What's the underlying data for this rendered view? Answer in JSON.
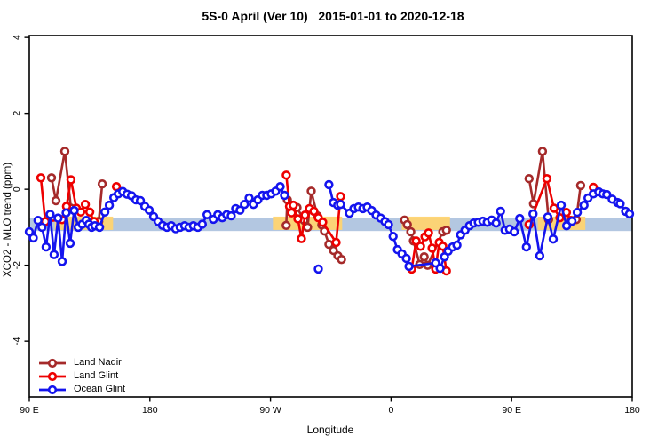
{
  "chart_data": {
    "type": "line",
    "title": "5S-0 April (Ver 10)   2015-01-01 to 2020-12-18",
    "xlabel": "Longitude",
    "ylabel": "XCO2 - MLO trend (ppm)",
    "xlim": [
      90,
      540
    ],
    "ylim": [
      -5.47,
      4.05
    ],
    "grid": false,
    "legend_position": "bottom-left",
    "x_axis_note": "x axis is longitude wrapping eastward: 90E to 180 to 90W to 0 to 90E to 180",
    "x_ticks": [
      {
        "value": 90,
        "label": "90 E"
      },
      {
        "value": 180,
        "label": "180"
      },
      {
        "value": 270,
        "label": "90 W"
      },
      {
        "value": 360,
        "label": "0"
      },
      {
        "value": 450,
        "label": "90 E"
      },
      {
        "value": 540,
        "label": "180"
      }
    ],
    "y_ticks": [
      {
        "value": -4,
        "label": "-4"
      },
      {
        "value": -2,
        "label": "-2"
      },
      {
        "value": 0,
        "label": "0"
      },
      {
        "value": 2,
        "label": "2"
      },
      {
        "value": 4,
        "label": "4"
      }
    ],
    "bands": [
      {
        "name": "blue-band",
        "color": "#AFC4DF",
        "opacity": 0.95,
        "y_range": [
          -1.1,
          -0.75
        ],
        "x_segments": [
          [
            90,
            540
          ]
        ]
      },
      {
        "name": "yellow-band",
        "color": "#FFD470",
        "opacity": 0.95,
        "y_range": [
          -1.07,
          -0.72
        ],
        "x_segments": [
          [
            109,
            152.5
          ],
          [
            271.8,
            323.5
          ],
          [
            368,
            404
          ],
          [
            469.5,
            505
          ]
        ]
      }
    ],
    "series": [
      {
        "name": "Land Nadir",
        "color": "#A52A2A",
        "marker": "open-circle",
        "segments": [
          [
            [
              106.6,
              0.3
            ],
            [
              109.9,
              -0.3
            ],
            [
              116.5,
              1.0
            ],
            [
              121.1,
              -0.5
            ]
          ],
          [
            [
              141.8,
              -0.85
            ],
            [
              144.4,
              0.14
            ]
          ],
          [
            [
              281.7,
              -0.95
            ],
            [
              282.6,
              -0.28
            ],
            [
              285.8,
              -0.42
            ],
            [
              289.8,
              -0.48
            ],
            [
              295.1,
              -0.82
            ],
            [
              297.7,
              -1.0
            ],
            [
              300.4,
              -0.05
            ],
            [
              305.0,
              -0.7
            ],
            [
              308.3,
              -0.94
            ],
            [
              310.3,
              -1.1
            ],
            [
              313.6,
              -1.45
            ],
            [
              317.0,
              -1.61
            ],
            [
              320.3,
              -1.75
            ],
            [
              323.0,
              -1.85
            ]
          ],
          [
            [
              370.1,
              -0.81
            ],
            [
              372.1,
              -0.93
            ],
            [
              374.7,
              -1.12
            ],
            [
              376.7,
              -1.36
            ],
            [
              381.4,
              -1.98
            ],
            [
              384.7,
              -1.78
            ],
            [
              387.3,
              -2.0
            ],
            [
              398.6,
              -1.12
            ],
            [
              401.3,
              -1.08
            ]
          ],
          [
            [
              463.0,
              0.28
            ],
            [
              466.3,
              -0.38
            ],
            [
              473.0,
              1.0
            ],
            [
              477.6,
              -0.8
            ]
          ],
          [
            [
              498.2,
              -0.8
            ],
            [
              501.5,
              0.1
            ]
          ]
        ],
        "isolated_points": []
      },
      {
        "name": "Land Glint",
        "color": "#EE0000",
        "marker": "open-circle",
        "segments": [
          [
            [
              98.6,
              0.3
            ],
            [
              101.9,
              -0.85
            ],
            [
              114.5,
              -0.8
            ],
            [
              117.8,
              -0.45
            ],
            [
              121.1,
              0.25
            ],
            [
              125.1,
              -0.5
            ],
            [
              128.4,
              -0.6
            ],
            [
              131.8,
              -0.4
            ],
            [
              135.1,
              -0.6
            ],
            [
              138.4,
              -0.85
            ]
          ],
          [
            [
              281.8,
              0.37
            ],
            [
              284.2,
              -0.45
            ],
            [
              285.8,
              -0.62
            ],
            [
              287.1,
              -0.42
            ],
            [
              290.5,
              -0.78
            ],
            [
              293.1,
              -1.3
            ],
            [
              295.8,
              -0.68
            ],
            [
              299.1,
              -0.51
            ],
            [
              302.4,
              -0.58
            ],
            [
              305.7,
              -0.75
            ],
            [
              309.0,
              -0.87
            ],
            [
              319.0,
              -1.4
            ],
            [
              322.3,
              -0.19
            ]
          ],
          [
            [
              375.4,
              -2.1
            ],
            [
              378.7,
              -1.36
            ],
            [
              382.0,
              -1.5
            ],
            [
              385.3,
              -1.25
            ],
            [
              388.0,
              -1.15
            ],
            [
              390.6,
              -1.55
            ],
            [
              393.3,
              -2.1
            ],
            [
              395.9,
              -1.4
            ],
            [
              398.6,
              -1.5
            ],
            [
              401.3,
              -2.15
            ]
          ],
          [
            [
              463.0,
              -0.93
            ],
            [
              476.3,
              0.28
            ],
            [
              481.6,
              -0.5
            ],
            [
              486.0,
              -0.75
            ],
            [
              490.9,
              -0.61
            ],
            [
              494.2,
              -0.82
            ]
          ]
        ],
        "isolated_points": [
          [
            155.0,
            0.07
          ],
          [
            511.0,
            0.05
          ]
        ]
      },
      {
        "name": "Ocean Glint",
        "color": "#1414EE",
        "marker": "open-circle",
        "segments": [
          [
            [
              90,
              -1.12
            ],
            [
              93,
              -1.28
            ],
            [
              96.5,
              -0.82
            ],
            [
              99.5,
              -1.0
            ],
            [
              102.5,
              -1.52
            ],
            [
              105.5,
              -0.66
            ],
            [
              108.5,
              -1.72
            ],
            [
              111.5,
              -0.76
            ],
            [
              114.5,
              -1.9
            ],
            [
              117.5,
              -0.62
            ],
            [
              120.5,
              -1.42
            ],
            [
              123.5,
              -0.56
            ],
            [
              126.5,
              -1.0
            ],
            [
              129.5,
              -0.92
            ],
            [
              132.5,
              -0.82
            ],
            [
              134.5,
              -0.92
            ],
            [
              136.5,
              -1.0
            ],
            [
              139.0,
              -0.96
            ],
            [
              142.4,
              -1.0
            ],
            [
              146.4,
              -0.6
            ],
            [
              149.7,
              -0.42
            ],
            [
              153.1,
              -0.22
            ],
            [
              156.4,
              -0.12
            ],
            [
              159.7,
              -0.06
            ],
            [
              163.0,
              -0.13
            ],
            [
              166.3,
              -0.17
            ],
            [
              169.6,
              -0.28
            ],
            [
              172.9,
              -0.3
            ],
            [
              176.2,
              -0.45
            ],
            [
              179.5,
              -0.55
            ],
            [
              182.8,
              -0.72
            ],
            [
              186.1,
              -0.85
            ],
            [
              189.4,
              -0.95
            ],
            [
              192.7,
              -1.0
            ],
            [
              196.0,
              -0.96
            ],
            [
              199.3,
              -1.04
            ],
            [
              202.6,
              -1.0
            ],
            [
              205.9,
              -0.96
            ],
            [
              209.2,
              -1.0
            ],
            [
              212.5,
              -0.96
            ],
            [
              215.8,
              -1.0
            ],
            [
              219.1,
              -0.92
            ],
            [
              222.7,
              -0.67
            ],
            [
              227.4,
              -0.79
            ],
            [
              230.7,
              -0.67
            ],
            [
              234.0,
              -0.75
            ],
            [
              237.3,
              -0.67
            ],
            [
              240.7,
              -0.7
            ],
            [
              244.0,
              -0.51
            ],
            [
              247.3,
              -0.55
            ],
            [
              250.6,
              -0.4
            ],
            [
              254.0,
              -0.23
            ],
            [
              257.3,
              -0.4
            ],
            [
              260.6,
              -0.28
            ],
            [
              263.9,
              -0.16
            ],
            [
              267.2,
              -0.16
            ],
            [
              270.5,
              -0.12
            ],
            [
              273.9,
              -0.05
            ],
            [
              277.2,
              0.07
            ],
            [
              280.5,
              -0.16
            ]
          ],
          [
            [
              313.6,
              0.12
            ],
            [
              316.9,
              -0.35
            ],
            [
              320.2,
              -0.42
            ],
            [
              322.3,
              -0.4
            ],
            [
              328.9,
              -0.63
            ],
            [
              332.2,
              -0.51
            ],
            [
              335.6,
              -0.47
            ],
            [
              338.9,
              -0.51
            ],
            [
              342.2,
              -0.47
            ],
            [
              345.5,
              -0.56
            ],
            [
              348.8,
              -0.68
            ],
            [
              352.2,
              -0.76
            ],
            [
              355.4,
              -0.85
            ],
            [
              358.1,
              -0.93
            ],
            [
              361.5,
              -1.24
            ],
            [
              364.8,
              -1.59
            ],
            [
              368.1,
              -1.7
            ],
            [
              371.4,
              -1.82
            ],
            [
              373.4,
              -2.03
            ],
            [
              393.3,
              -1.94
            ],
            [
              396.6,
              -2.08
            ],
            [
              399.9,
              -1.78
            ],
            [
              402.6,
              -1.63
            ],
            [
              405.9,
              -1.52
            ],
            [
              409.2,
              -1.47
            ],
            [
              411.9,
              -1.2
            ],
            [
              415.2,
              -1.08
            ],
            [
              418.5,
              -0.96
            ],
            [
              421.8,
              -0.89
            ],
            [
              425.1,
              -0.87
            ],
            [
              428.5,
              -0.84
            ],
            [
              431.8,
              -0.87
            ],
            [
              435.1,
              -0.81
            ],
            [
              438.4,
              -0.89
            ],
            [
              441.7,
              -0.58
            ],
            [
              445.1,
              -1.08
            ],
            [
              448.4,
              -1.05
            ],
            [
              452.0,
              -1.12
            ],
            [
              456.0,
              -0.77
            ],
            [
              461.0,
              -1.52
            ],
            [
              466.0,
              -0.65
            ],
            [
              471.0,
              -1.75
            ],
            [
              477.0,
              -0.73
            ],
            [
              481.0,
              -1.31
            ],
            [
              487.0,
              -0.42
            ],
            [
              491.0,
              -0.96
            ],
            [
              495.0,
              -0.84
            ],
            [
              499.0,
              -0.61
            ],
            [
              504.0,
              -0.42
            ],
            [
              507.0,
              -0.23
            ],
            [
              511.0,
              -0.12
            ],
            [
              515.0,
              -0.07
            ],
            [
              518.0,
              -0.12
            ],
            [
              521.0,
              -0.14
            ],
            [
              525.0,
              -0.26
            ],
            [
              529.0,
              -0.35
            ],
            [
              531.0,
              -0.38
            ],
            [
              535.0,
              -0.58
            ],
            [
              538.0,
              -0.65
            ]
          ]
        ],
        "isolated_points": [
          [
            305.7,
            -2.1
          ]
        ]
      }
    ]
  }
}
